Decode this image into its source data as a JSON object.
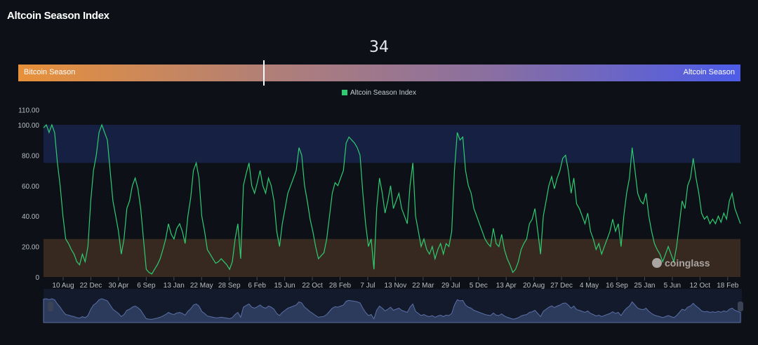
{
  "header": {
    "title": "Altcoin Season Index"
  },
  "gauge": {
    "value": "34",
    "fraction": 0.34,
    "left_label": "Bitcoin Season",
    "right_label": "Altcoin Season"
  },
  "chart_data": {
    "type": "line",
    "legend": [
      "Altcoin Season Index"
    ],
    "legend_position": "top",
    "series_color": "#2ecc71",
    "ylim": [
      0,
      110
    ],
    "yticks": [
      "0",
      "20.00",
      "40.00",
      "60.00",
      "80.00",
      "100.00",
      "110.00"
    ],
    "ytick_values": [
      0,
      20,
      40,
      60,
      80,
      100,
      110
    ],
    "bands": [
      {
        "from": 75,
        "to": 100,
        "color": "#162042"
      },
      {
        "from": 0,
        "to": 25,
        "color": "#372920"
      }
    ],
    "xticks": [
      "10 Aug",
      "22 Dec",
      "30 Apr",
      "6 Sep",
      "13 Jan",
      "22 May",
      "28 Sep",
      "6 Feb",
      "15 Jun",
      "22 Oct",
      "28 Feb",
      "7 Jul",
      "13 Nov",
      "22 Mar",
      "29 Jul",
      "5 Dec",
      "13 Apr",
      "20 Aug",
      "27 Dec",
      "4 May",
      "16 Sep",
      "25 Jan",
      "5 Jun",
      "12 Oct",
      "18 Feb"
    ],
    "values": [
      98,
      100,
      95,
      100,
      95,
      75,
      60,
      40,
      25,
      22,
      18,
      15,
      10,
      8,
      15,
      10,
      20,
      50,
      70,
      80,
      95,
      100,
      95,
      90,
      70,
      50,
      40,
      30,
      15,
      25,
      45,
      50,
      60,
      65,
      58,
      45,
      25,
      5,
      3,
      2,
      5,
      8,
      12,
      18,
      25,
      35,
      28,
      25,
      32,
      35,
      30,
      22,
      40,
      52,
      70,
      75,
      65,
      40,
      30,
      18,
      15,
      12,
      9,
      10,
      12,
      10,
      8,
      5,
      10,
      25,
      35,
      12,
      60,
      68,
      75,
      60,
      55,
      62,
      70,
      60,
      55,
      65,
      60,
      50,
      30,
      20,
      35,
      45,
      55,
      60,
      65,
      70,
      85,
      80,
      60,
      50,
      38,
      30,
      20,
      12,
      14,
      16,
      25,
      40,
      55,
      62,
      60,
      65,
      70,
      88,
      92,
      90,
      88,
      85,
      80,
      55,
      35,
      20,
      25,
      5,
      45,
      65,
      55,
      42,
      50,
      60,
      45,
      50,
      55,
      45,
      40,
      35,
      60,
      75,
      40,
      30,
      20,
      25,
      18,
      15,
      20,
      12,
      18,
      22,
      15,
      22,
      20,
      30,
      70,
      95,
      90,
      92,
      70,
      60,
      55,
      45,
      40,
      35,
      30,
      25,
      22,
      20,
      32,
      22,
      20,
      28,
      18,
      12,
      8,
      3,
      5,
      10,
      18,
      22,
      25,
      35,
      38,
      45,
      30,
      15,
      40,
      50,
      60,
      66,
      58,
      65,
      70,
      78,
      80,
      70,
      55,
      65,
      48,
      45,
      40,
      35,
      42,
      30,
      25,
      18,
      22,
      15,
      20,
      25,
      30,
      38,
      30,
      35,
      20,
      40,
      55,
      65,
      85,
      70,
      55,
      50,
      48,
      55,
      40,
      30,
      22,
      18,
      15,
      10,
      15,
      20,
      15,
      10,
      20,
      35,
      50,
      45,
      60,
      65,
      78,
      65,
      55,
      42,
      38,
      40,
      35,
      38,
      35,
      40,
      36,
      42,
      38,
      50,
      55,
      45,
      40,
      35
    ]
  },
  "watermark": "coinglass"
}
